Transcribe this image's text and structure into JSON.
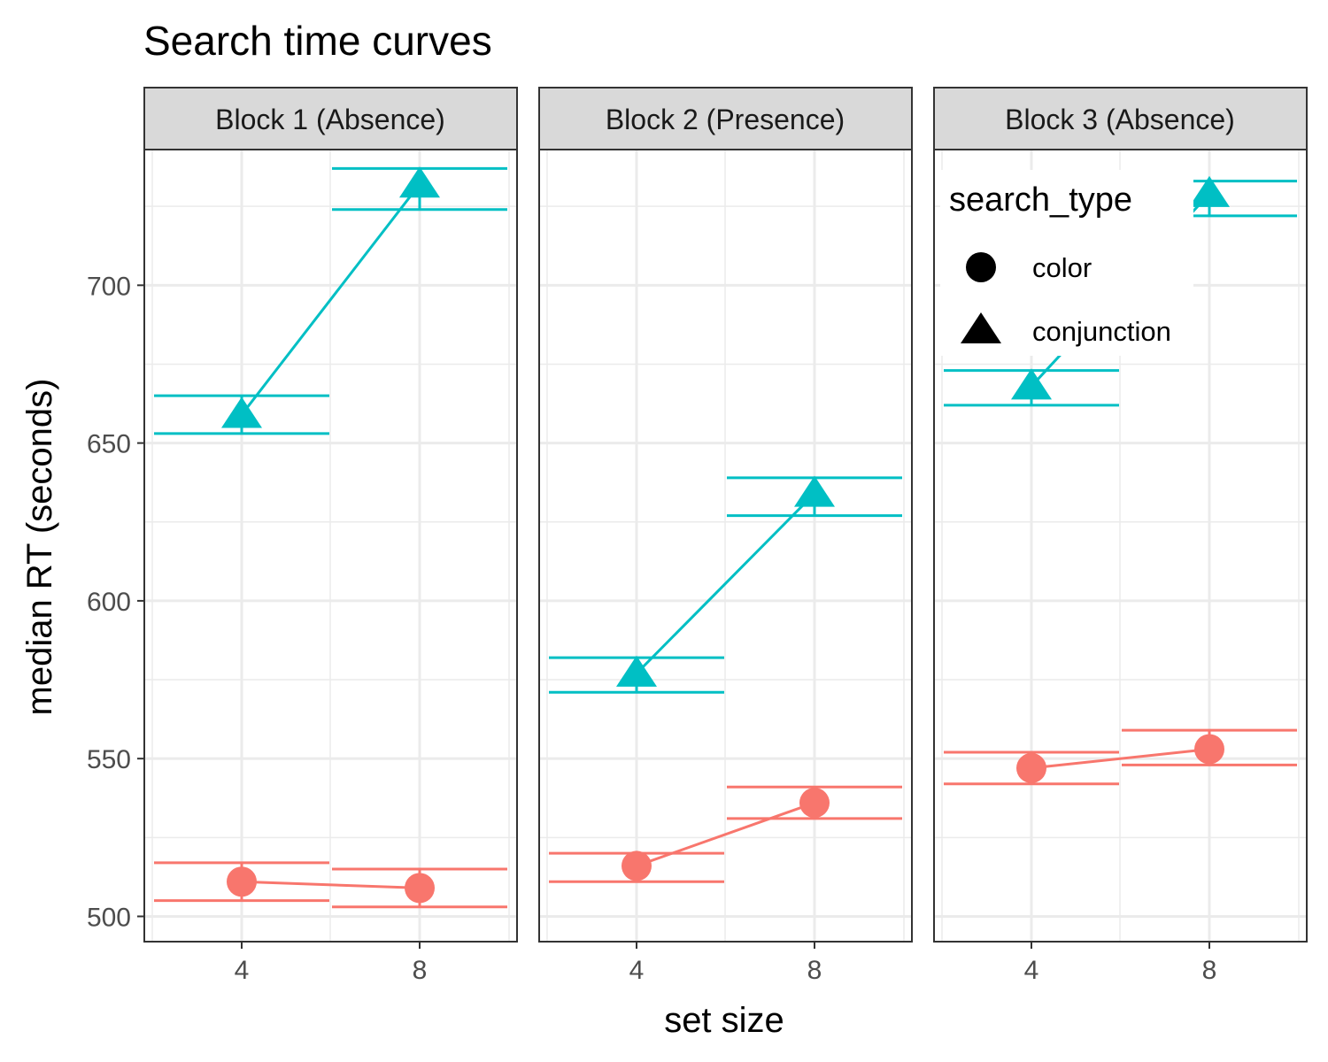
{
  "chart_data": {
    "type": "line",
    "title": "Search time curves",
    "xlabel": "set size",
    "ylabel": "median RT (seconds)",
    "x_ticks": [
      "4",
      "8"
    ],
    "y_ticks": [
      500,
      550,
      600,
      650,
      700
    ],
    "ylim": [
      492,
      743
    ],
    "legend": {
      "title": "search_type",
      "position": "top-right",
      "entries": [
        {
          "label": "color",
          "shape": "circle"
        },
        {
          "label": "conjunction",
          "shape": "triangle"
        }
      ]
    },
    "series_colors": {
      "color": "#F8766D",
      "conjunction": "#00BFC4"
    },
    "panels": [
      {
        "label": "Block 1 (Absence)",
        "series": [
          {
            "name": "color",
            "x": [
              "4",
              "8"
            ],
            "values": [
              511,
              509
            ],
            "error_low": [
              505,
              503
            ],
            "error_high": [
              517,
              515
            ]
          },
          {
            "name": "conjunction",
            "x": [
              "4",
              "8"
            ],
            "values": [
              659,
              732
            ],
            "error_low": [
              653,
              724
            ],
            "error_high": [
              665,
              737
            ]
          }
        ]
      },
      {
        "label": "Block 2 (Presence)",
        "series": [
          {
            "name": "color",
            "x": [
              "4",
              "8"
            ],
            "values": [
              516,
              536
            ],
            "error_low": [
              511,
              531
            ],
            "error_high": [
              520,
              541
            ]
          },
          {
            "name": "conjunction",
            "x": [
              "4",
              "8"
            ],
            "values": [
              577,
              634
            ],
            "error_low": [
              571,
              627
            ],
            "error_high": [
              582,
              639
            ]
          }
        ]
      },
      {
        "label": "Block 3 (Absence)",
        "series": [
          {
            "name": "color",
            "x": [
              "4",
              "8"
            ],
            "values": [
              547,
              553
            ],
            "error_low": [
              542,
              548
            ],
            "error_high": [
              552,
              559
            ]
          },
          {
            "name": "conjunction",
            "x": [
              "4",
              "8"
            ],
            "values": [
              668,
              729
            ],
            "error_low": [
              662,
              722
            ],
            "error_high": [
              673,
              733
            ]
          }
        ]
      }
    ]
  }
}
